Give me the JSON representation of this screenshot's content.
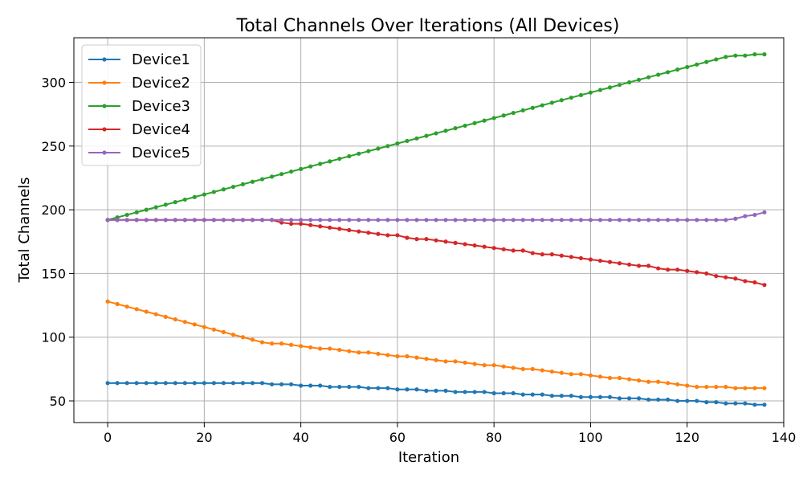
{
  "chart_data": {
    "type": "line",
    "title": "Total Channels Over Iterations (All Devices)",
    "xlabel": "Iteration",
    "ylabel": "Total Channels",
    "xlim": [
      -7,
      140
    ],
    "ylim": [
      33,
      335
    ],
    "xticks": [
      0,
      20,
      40,
      60,
      80,
      100,
      120,
      140
    ],
    "yticks": [
      50,
      100,
      150,
      200,
      250,
      300
    ],
    "grid": true,
    "legend_position": "upper-left",
    "x": [
      0,
      2,
      4,
      6,
      8,
      10,
      12,
      14,
      16,
      18,
      20,
      22,
      24,
      26,
      28,
      30,
      32,
      34,
      36,
      38,
      40,
      42,
      44,
      46,
      48,
      50,
      52,
      54,
      56,
      58,
      60,
      62,
      64,
      66,
      68,
      70,
      72,
      74,
      76,
      78,
      80,
      82,
      84,
      86,
      88,
      90,
      92,
      94,
      96,
      98,
      100,
      102,
      104,
      106,
      108,
      110,
      112,
      114,
      116,
      118,
      120,
      122,
      124,
      126,
      128,
      130,
      132,
      134,
      136
    ],
    "series": [
      {
        "name": "Device1",
        "color": "#1f77b4",
        "values": [
          64,
          64,
          64,
          64,
          64,
          64,
          64,
          64,
          64,
          64,
          64,
          64,
          64,
          64,
          64,
          64,
          64,
          63,
          63,
          63,
          62,
          62,
          62,
          61,
          61,
          61,
          61,
          60,
          60,
          60,
          59,
          59,
          59,
          58,
          58,
          58,
          57,
          57,
          57,
          57,
          56,
          56,
          56,
          55,
          55,
          55,
          54,
          54,
          54,
          53,
          53,
          53,
          53,
          52,
          52,
          52,
          51,
          51,
          51,
          50,
          50,
          50,
          49,
          49,
          48,
          48,
          48,
          47,
          47
        ]
      },
      {
        "name": "Device2",
        "color": "#ff7f0e",
        "values": [
          128,
          126,
          124,
          122,
          120,
          118,
          116,
          114,
          112,
          110,
          108,
          106,
          104,
          102,
          100,
          98,
          96,
          95,
          95,
          94,
          93,
          92,
          91,
          91,
          90,
          89,
          88,
          88,
          87,
          86,
          85,
          85,
          84,
          83,
          82,
          81,
          81,
          80,
          79,
          78,
          78,
          77,
          76,
          75,
          75,
          74,
          73,
          72,
          71,
          71,
          70,
          69,
          68,
          68,
          67,
          66,
          65,
          65,
          64,
          63,
          62,
          61,
          61,
          61,
          61,
          60,
          60,
          60,
          60
        ]
      },
      {
        "name": "Device3",
        "color": "#2ca02c",
        "values": [
          192,
          194,
          196,
          198,
          200,
          202,
          204,
          206,
          208,
          210,
          212,
          214,
          216,
          218,
          220,
          222,
          224,
          226,
          228,
          230,
          232,
          234,
          236,
          238,
          240,
          242,
          244,
          246,
          248,
          250,
          252,
          254,
          256,
          258,
          260,
          262,
          264,
          266,
          268,
          270,
          272,
          274,
          276,
          278,
          280,
          282,
          284,
          286,
          288,
          290,
          292,
          294,
          296,
          298,
          300,
          302,
          304,
          306,
          308,
          310,
          312,
          314,
          316,
          318,
          320,
          321,
          321,
          322,
          322
        ]
      },
      {
        "name": "Device4",
        "color": "#d62728",
        "values": [
          192,
          192,
          192,
          192,
          192,
          192,
          192,
          192,
          192,
          192,
          192,
          192,
          192,
          192,
          192,
          192,
          192,
          192,
          190,
          189,
          189,
          188,
          187,
          186,
          185,
          184,
          183,
          182,
          181,
          180,
          180,
          178,
          177,
          177,
          176,
          175,
          174,
          173,
          172,
          171,
          170,
          169,
          168,
          168,
          166,
          165,
          165,
          164,
          163,
          162,
          161,
          160,
          159,
          158,
          157,
          156,
          156,
          154,
          153,
          153,
          152,
          151,
          150,
          148,
          147,
          146,
          144,
          143,
          141
        ]
      },
      {
        "name": "Device5",
        "color": "#9467bd",
        "values": [
          192,
          192,
          192,
          192,
          192,
          192,
          192,
          192,
          192,
          192,
          192,
          192,
          192,
          192,
          192,
          192,
          192,
          192,
          192,
          192,
          192,
          192,
          192,
          192,
          192,
          192,
          192,
          192,
          192,
          192,
          192,
          192,
          192,
          192,
          192,
          192,
          192,
          192,
          192,
          192,
          192,
          192,
          192,
          192,
          192,
          192,
          192,
          192,
          192,
          192,
          192,
          192,
          192,
          192,
          192,
          192,
          192,
          192,
          192,
          192,
          192,
          192,
          192,
          192,
          192,
          193,
          195,
          196,
          198
        ]
      }
    ]
  }
}
